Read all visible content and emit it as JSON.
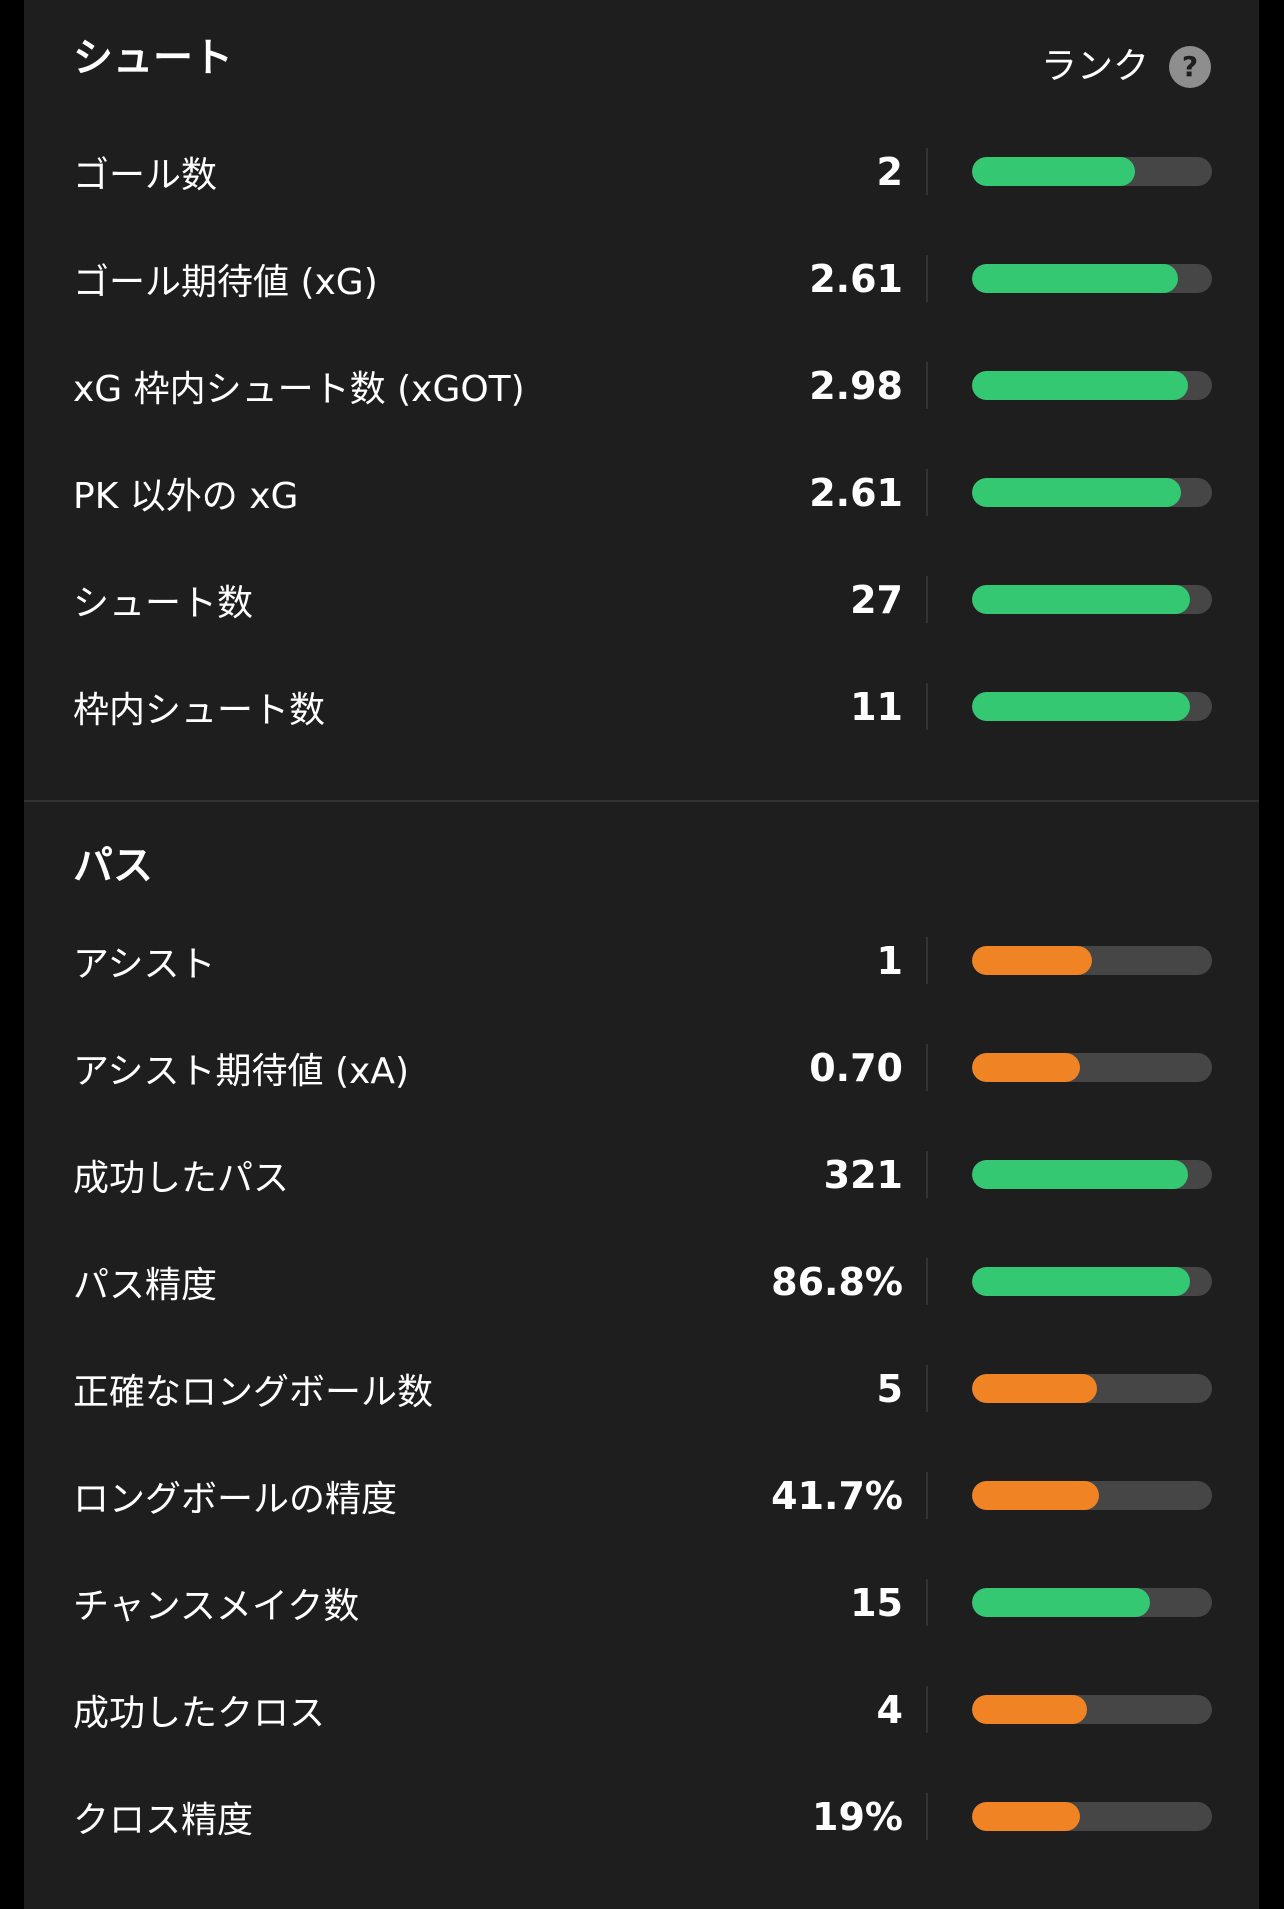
{
  "colors": {
    "good": "#34c873",
    "average": "#f08324",
    "track": "#464646"
  },
  "shoot": {
    "title": "シュート",
    "rank_label": "ランク",
    "help_icon": "question-mark-icon",
    "rows": [
      {
        "label": "ゴール数",
        "value": "2",
        "percentile": 0.68,
        "level": "good"
      },
      {
        "label": "ゴール期待値 (xG)",
        "value": "2.61",
        "percentile": 0.86,
        "level": "good"
      },
      {
        "label": "xG 枠内シュート数 (xGOT)",
        "value": "2.98",
        "percentile": 0.9,
        "level": "good"
      },
      {
        "label": "PK 以外の xG",
        "value": "2.61",
        "percentile": 0.87,
        "level": "good"
      },
      {
        "label": "シュート数",
        "value": "27",
        "percentile": 0.91,
        "level": "good"
      },
      {
        "label": "枠内シュート数",
        "value": "11",
        "percentile": 0.91,
        "level": "good"
      }
    ]
  },
  "pass": {
    "title": "パス",
    "rows": [
      {
        "label": "アシスト",
        "value": "1",
        "percentile": 0.5,
        "level": "average"
      },
      {
        "label": "アシスト期待値 (xA)",
        "value": "0.70",
        "percentile": 0.45,
        "level": "average"
      },
      {
        "label": "成功したパス",
        "value": "321",
        "percentile": 0.9,
        "level": "good"
      },
      {
        "label": "パス精度",
        "value": "86.8%",
        "percentile": 0.91,
        "level": "good"
      },
      {
        "label": "正確なロングボール数",
        "value": "5",
        "percentile": 0.52,
        "level": "average"
      },
      {
        "label": "ロングボールの精度",
        "value": "41.7%",
        "percentile": 0.53,
        "level": "average"
      },
      {
        "label": "チャンスメイク数",
        "value": "15",
        "percentile": 0.74,
        "level": "good"
      },
      {
        "label": "成功したクロス",
        "value": "4",
        "percentile": 0.48,
        "level": "average"
      },
      {
        "label": "クロス精度",
        "value": "19%",
        "percentile": 0.45,
        "level": "average"
      }
    ]
  }
}
